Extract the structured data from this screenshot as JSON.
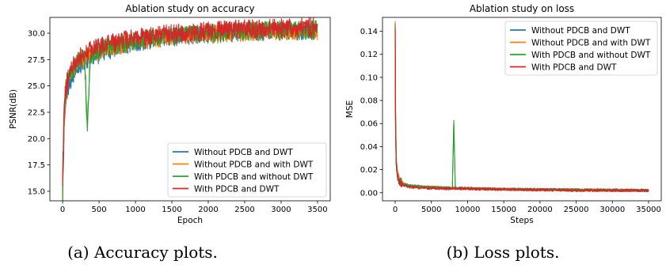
{
  "colors": {
    "Without PDCB and DWT": "#1f77b4",
    "Without PDCB and with DWT": "#ff7f0e",
    "With PDCB and without DWT": "#2ca02c",
    "With PDCB and DWT": "#d62728"
  },
  "captions": [
    "(a) Accuracy plots.",
    "(b) Loss plots."
  ],
  "chart_data": [
    {
      "type": "line",
      "title": "Ablation study on accuracy",
      "xlabel": "Epoch",
      "ylabel": "PSNR(dB)",
      "xlim": [
        -175,
        3675
      ],
      "ylim": [
        14.1,
        31.5
      ],
      "xticks": [
        0,
        500,
        1000,
        1500,
        2000,
        2500,
        3000,
        3500
      ],
      "yticks": [
        15.0,
        17.5,
        20.0,
        22.5,
        25.0,
        27.5,
        30.0
      ],
      "ytick_labels": [
        "15.0",
        "17.5",
        "20.0",
        "22.5",
        "25.0",
        "27.5",
        "30.0"
      ],
      "grid": false,
      "legend_position": "lower-right",
      "series": [
        {
          "name": "Without PDCB and DWT",
          "color": "#1f77b4",
          "x": [
            0,
            20,
            50,
            100,
            200,
            300,
            500,
            800,
            1000,
            1500,
            2000,
            2500,
            3000,
            3500
          ],
          "y": [
            15.0,
            21.0,
            24.0,
            25.5,
            26.8,
            27.4,
            28.0,
            28.8,
            29.1,
            29.6,
            29.9,
            30.1,
            30.2,
            30.2
          ]
        },
        {
          "name": "Without PDCB and with DWT",
          "color": "#ff7f0e",
          "x": [
            0,
            20,
            50,
            100,
            200,
            300,
            500,
            800,
            1000,
            1500,
            2000,
            2500,
            3000,
            3500
          ],
          "y": [
            14.5,
            22.0,
            24.5,
            25.9,
            27.1,
            27.6,
            28.3,
            28.9,
            29.2,
            29.7,
            29.9,
            30.1,
            30.2,
            30.2
          ]
        },
        {
          "name": "With PDCB and without DWT",
          "color": "#2ca02c",
          "x": [
            0,
            20,
            50,
            100,
            200,
            300,
            340,
            380,
            500,
            800,
            1000,
            1500,
            2000,
            2500,
            3000,
            3500
          ],
          "y": [
            15.0,
            22.5,
            24.8,
            26.0,
            27.3,
            27.8,
            21.0,
            27.8,
            28.4,
            29.0,
            29.3,
            29.8,
            30.0,
            30.2,
            30.3,
            30.3
          ]
        },
        {
          "name": "With PDCB and DWT",
          "color": "#d62728",
          "x": [
            0,
            20,
            50,
            100,
            200,
            300,
            500,
            800,
            1000,
            1500,
            2000,
            2500,
            3000,
            3500
          ],
          "y": [
            16.0,
            23.0,
            25.0,
            26.3,
            27.6,
            28.1,
            28.7,
            29.3,
            29.6,
            30.0,
            30.2,
            30.4,
            30.5,
            30.6
          ]
        }
      ]
    },
    {
      "type": "line",
      "title": "Ablation study on loss",
      "xlabel": "Steps",
      "ylabel": "MSE",
      "xlim": [
        -1750,
        36750
      ],
      "ylim": [
        -0.007,
        0.152
      ],
      "xticks": [
        0,
        5000,
        10000,
        15000,
        20000,
        25000,
        30000,
        35000
      ],
      "yticks": [
        0.0,
        0.02,
        0.04,
        0.06,
        0.08,
        0.1,
        0.12,
        0.14
      ],
      "ytick_labels": [
        "0.00",
        "0.02",
        "0.04",
        "0.06",
        "0.08",
        "0.10",
        "0.12",
        "0.14"
      ],
      "grid": false,
      "legend_position": "upper-right",
      "series": [
        {
          "name": "Without PDCB and DWT",
          "color": "#1f77b4",
          "x": [
            0,
            50,
            150,
            300,
            600,
            1000,
            2000,
            4000,
            8000,
            15000,
            25000,
            35000
          ],
          "y": [
            0.13,
            0.06,
            0.025,
            0.015,
            0.01,
            0.008,
            0.006,
            0.005,
            0.004,
            0.003,
            0.0025,
            0.002
          ]
        },
        {
          "name": "Without PDCB and with DWT",
          "color": "#ff7f0e",
          "x": [
            0,
            50,
            150,
            300,
            600,
            1000,
            2000,
            4000,
            8000,
            15000,
            25000,
            35000
          ],
          "y": [
            0.147,
            0.07,
            0.03,
            0.016,
            0.011,
            0.008,
            0.006,
            0.005,
            0.004,
            0.003,
            0.0025,
            0.002
          ]
        },
        {
          "name": "With PDCB and without DWT",
          "color": "#2ca02c",
          "x": [
            0,
            50,
            150,
            300,
            600,
            1000,
            2000,
            4000,
            7900,
            8100,
            8300,
            15000,
            25000,
            35000
          ],
          "y": [
            0.145,
            0.065,
            0.028,
            0.015,
            0.01,
            0.008,
            0.006,
            0.005,
            0.004,
            0.063,
            0.004,
            0.003,
            0.0025,
            0.002
          ]
        },
        {
          "name": "With PDCB and DWT",
          "color": "#d62728",
          "x": [
            0,
            50,
            150,
            300,
            600,
            1000,
            2000,
            4000,
            8000,
            15000,
            25000,
            35000
          ],
          "y": [
            0.143,
            0.06,
            0.024,
            0.014,
            0.009,
            0.007,
            0.005,
            0.004,
            0.0035,
            0.003,
            0.002,
            0.002
          ]
        }
      ]
    }
  ]
}
